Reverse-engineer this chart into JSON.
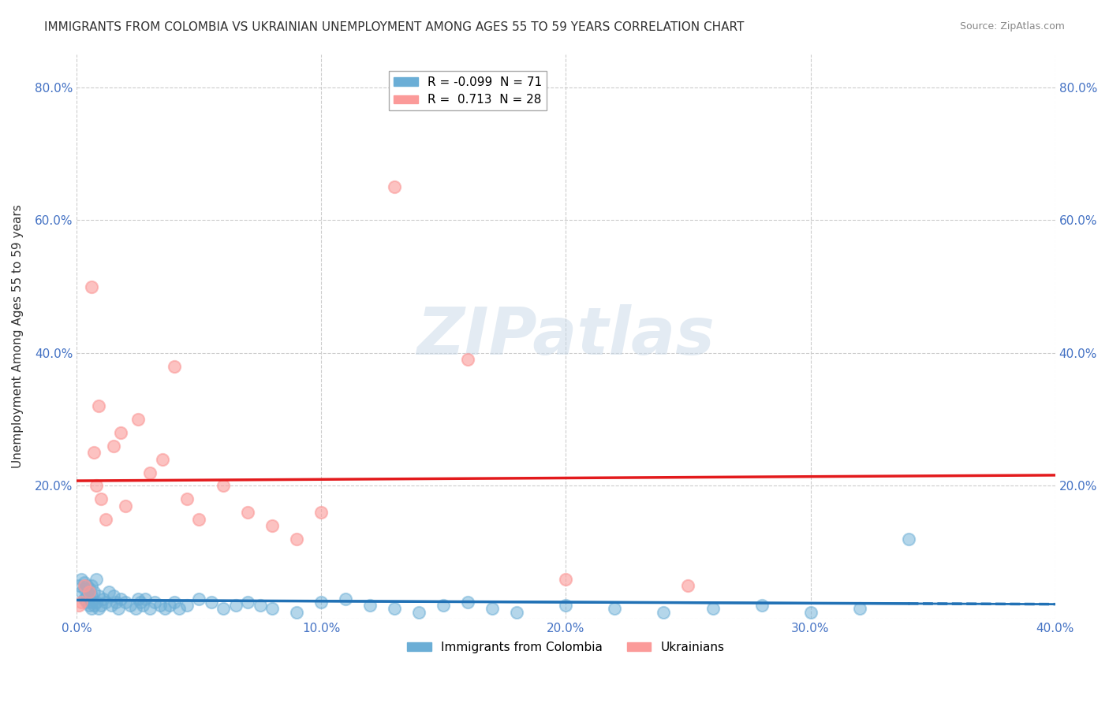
{
  "title": "IMMIGRANTS FROM COLOMBIA VS UKRAINIAN UNEMPLOYMENT AMONG AGES 55 TO 59 YEARS CORRELATION CHART",
  "source": "Source: ZipAtlas.com",
  "ylabel": "Unemployment Among Ages 55 to 59 years",
  "xlabel": "",
  "xlim": [
    0.0,
    0.4
  ],
  "ylim": [
    0.0,
    0.85
  ],
  "xticks": [
    0.0,
    0.1,
    0.2,
    0.3,
    0.4
  ],
  "xticklabels": [
    "0.0%",
    "10.0%",
    "20.0%",
    "30.0%",
    "40.0%"
  ],
  "yticks": [
    0.0,
    0.2,
    0.4,
    0.6,
    0.8
  ],
  "yticklabels": [
    "",
    "20.0%",
    "40.0%",
    "60.0%",
    "80.0%"
  ],
  "right_yticks": [
    0.0,
    0.2,
    0.4,
    0.6,
    0.8
  ],
  "right_yticklabels": [
    "",
    "20.0%",
    "40.0%",
    "60.0%",
    "80.0%"
  ],
  "colombia_color": "#6baed6",
  "ukraine_color": "#fb9a99",
  "colombia_R": -0.099,
  "colombia_N": 71,
  "ukraine_R": 0.713,
  "ukraine_N": 28,
  "colombia_line_color": "#2171b5",
  "ukraine_line_color": "#e31a1c",
  "watermark": "ZIPatlas",
  "watermark_color": "#c8d8e8",
  "colombia_x": [
    0.001,
    0.002,
    0.002,
    0.003,
    0.003,
    0.003,
    0.004,
    0.004,
    0.004,
    0.005,
    0.005,
    0.005,
    0.006,
    0.006,
    0.006,
    0.006,
    0.007,
    0.007,
    0.008,
    0.008,
    0.009,
    0.009,
    0.01,
    0.011,
    0.012,
    0.013,
    0.014,
    0.015,
    0.016,
    0.017,
    0.018,
    0.02,
    0.022,
    0.024,
    0.025,
    0.026,
    0.027,
    0.028,
    0.03,
    0.032,
    0.034,
    0.036,
    0.038,
    0.04,
    0.042,
    0.045,
    0.05,
    0.055,
    0.06,
    0.065,
    0.07,
    0.075,
    0.08,
    0.09,
    0.1,
    0.11,
    0.12,
    0.13,
    0.14,
    0.15,
    0.16,
    0.17,
    0.18,
    0.2,
    0.22,
    0.24,
    0.26,
    0.28,
    0.3,
    0.32,
    0.34
  ],
  "colombia_y": [
    0.05,
    0.04,
    0.06,
    0.03,
    0.045,
    0.055,
    0.025,
    0.035,
    0.05,
    0.02,
    0.03,
    0.045,
    0.015,
    0.025,
    0.035,
    0.05,
    0.02,
    0.04,
    0.025,
    0.06,
    0.015,
    0.035,
    0.02,
    0.03,
    0.025,
    0.04,
    0.02,
    0.035,
    0.025,
    0.015,
    0.03,
    0.025,
    0.02,
    0.015,
    0.03,
    0.025,
    0.02,
    0.03,
    0.015,
    0.025,
    0.02,
    0.015,
    0.02,
    0.025,
    0.015,
    0.02,
    0.03,
    0.025,
    0.015,
    0.02,
    0.025,
    0.02,
    0.015,
    0.01,
    0.025,
    0.03,
    0.02,
    0.015,
    0.01,
    0.02,
    0.025,
    0.015,
    0.01,
    0.02,
    0.015,
    0.01,
    0.015,
    0.02,
    0.01,
    0.015,
    0.12
  ],
  "ukraine_x": [
    0.001,
    0.002,
    0.003,
    0.005,
    0.006,
    0.007,
    0.008,
    0.009,
    0.01,
    0.012,
    0.015,
    0.018,
    0.02,
    0.025,
    0.03,
    0.035,
    0.04,
    0.045,
    0.05,
    0.06,
    0.07,
    0.08,
    0.09,
    0.1,
    0.13,
    0.16,
    0.2,
    0.25
  ],
  "ukraine_y": [
    0.02,
    0.025,
    0.05,
    0.04,
    0.5,
    0.25,
    0.2,
    0.32,
    0.18,
    0.15,
    0.26,
    0.28,
    0.17,
    0.3,
    0.22,
    0.24,
    0.38,
    0.18,
    0.15,
    0.2,
    0.16,
    0.14,
    0.12,
    0.16,
    0.65,
    0.39,
    0.06,
    0.05
  ]
}
